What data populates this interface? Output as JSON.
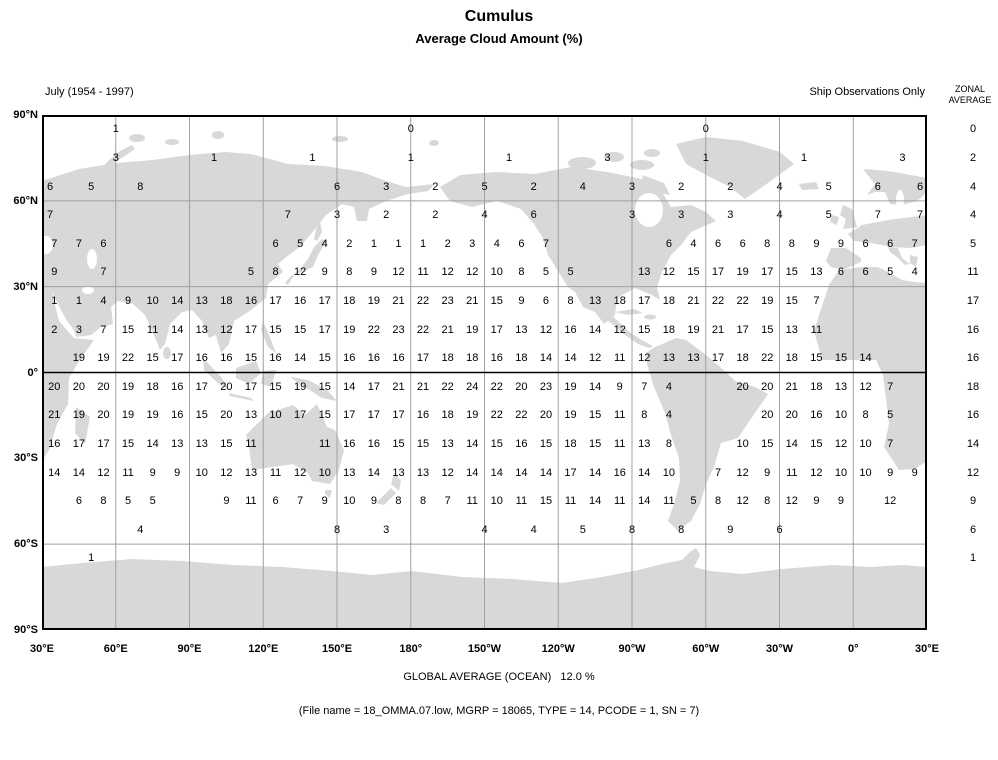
{
  "chart_data": {
    "type": "heatmap",
    "title": "Cumulus",
    "subtitle": "Average Cloud Amount (%)",
    "period": "July (1954 - 1997)",
    "annotation": "Ship Observations Only",
    "zonal_header_line1": "ZONAL",
    "zonal_header_line2": "AVERAGE",
    "global_average": "GLOBAL AVERAGE (OCEAN)   12.0 %",
    "file_info": "(File name = 18_OMMA.07.low, MGRP = 18065, TYPE = 14, PCODE = 1, SN = 7)",
    "x_tick_labels": [
      "30°E",
      "60°E",
      "90°E",
      "120°E",
      "150°E",
      "180°",
      "150°W",
      "120°W",
      "90°W",
      "60°W",
      "30°W",
      "0°",
      "30°E"
    ],
    "y_tick_labels": [
      "90°N",
      "60°N",
      "30°N",
      "0°",
      "30°S",
      "60°S",
      "90°S"
    ],
    "lon_origin_deg_east": 30,
    "lon_step_deg": 10,
    "rows": [
      {
        "band": "85N",
        "phase": "grid",
        "zonal": 0,
        "values": {
          "3": 1,
          "15": 0,
          "27": 0
        }
      },
      {
        "band": "75N",
        "phase": "grid",
        "zonal": 2,
        "values": {
          "3": 3,
          "7": 1,
          "11": 1,
          "15": 1,
          "19": 1,
          "23": 3,
          "27": 1,
          "31": 1,
          "35": 3
        }
      },
      {
        "band": "65N",
        "phase": "grid",
        "zonal": 4,
        "values": {
          "0": 6,
          "2": 5,
          "4": 8,
          "12": 6,
          "14": 3,
          "16": 2,
          "18": 5,
          "20": 2,
          "22": 4,
          "24": 3,
          "26": 2,
          "28": 2,
          "30": 4,
          "32": 5,
          "34": 6,
          "36": 6
        }
      },
      {
        "band": "55N",
        "phase": "grid",
        "zonal": 4,
        "values": {
          "0": 7,
          "10": 7,
          "12": 3,
          "14": 2,
          "16": 2,
          "18": 4,
          "20": 6,
          "24": 3,
          "26": 3,
          "28": 3,
          "30": 4,
          "32": 5,
          "34": 7,
          "36": 7
        }
      },
      {
        "band": "45N",
        "phase": "center",
        "zonal": 5,
        "values": {
          "0": 7,
          "1": 7,
          "2": 6,
          "9": 6,
          "10": 5,
          "11": 4,
          "12": 2,
          "13": 1,
          "14": 1,
          "15": 1,
          "16": 2,
          "17": 3,
          "18": 4,
          "19": 6,
          "20": 7,
          "25": 6,
          "26": 4,
          "27": 6,
          "28": 6,
          "29": 8,
          "30": 8,
          "31": 9,
          "32": 9,
          "33": 6,
          "34": 6,
          "35": 7
        }
      },
      {
        "band": "35N",
        "phase": "center",
        "zonal": 11,
        "values": {
          "0": 9,
          "2": 7,
          "8": 5,
          "9": 8,
          "10": 12,
          "11": 9,
          "12": 8,
          "13": 9,
          "14": 12,
          "15": 11,
          "16": 12,
          "17": 12,
          "18": 10,
          "19": 8,
          "20": 5,
          "21": 5,
          "24": 13,
          "25": 12,
          "26": 15,
          "27": 17,
          "28": 19,
          "29": 17,
          "30": 15,
          "31": 13,
          "32": 6,
          "33": 6,
          "34": 5,
          "35": 4
        }
      },
      {
        "band": "25N",
        "phase": "center",
        "zonal": 17,
        "values": {
          "0": 1,
          "1": 1,
          "2": 4,
          "3": 9,
          "4": 10,
          "5": 14,
          "6": 13,
          "7": 18,
          "8": 16,
          "9": 17,
          "10": 16,
          "11": 17,
          "12": 18,
          "13": 19,
          "14": 21,
          "15": 22,
          "16": 23,
          "17": 21,
          "18": 15,
          "19": 9,
          "20": 6,
          "21": 8,
          "22": 13,
          "23": 18,
          "24": 17,
          "25": 18,
          "26": 21,
          "27": 22,
          "28": 22,
          "29": 19,
          "30": 15,
          "31": 7
        }
      },
      {
        "band": "15N",
        "phase": "center",
        "zonal": 16,
        "values": {
          "0": 2,
          "1": 3,
          "2": 7,
          "3": 15,
          "4": 11,
          "5": 14,
          "6": 13,
          "7": 12,
          "8": 17,
          "9": 15,
          "10": 15,
          "11": 17,
          "12": 19,
          "13": 22,
          "14": 23,
          "15": 22,
          "16": 21,
          "17": 19,
          "18": 17,
          "19": 13,
          "20": 12,
          "21": 16,
          "22": 14,
          "23": 12,
          "24": 15,
          "25": 18,
          "26": 19,
          "27": 21,
          "28": 17,
          "29": 15,
          "30": 13,
          "31": 11
        }
      },
      {
        "band": "5N",
        "phase": "center",
        "zonal": 16,
        "values": {
          "1": 19,
          "2": 19,
          "3": 22,
          "4": 15,
          "5": 17,
          "6": 16,
          "7": 16,
          "8": 15,
          "9": 16,
          "10": 14,
          "11": 15,
          "12": 16,
          "13": 16,
          "14": 16,
          "15": 17,
          "16": 18,
          "17": 18,
          "18": 16,
          "19": 18,
          "20": 14,
          "21": 14,
          "22": 12,
          "23": 11,
          "24": 12,
          "25": 13,
          "26": 13,
          "27": 17,
          "28": 18,
          "29": 22,
          "30": 18,
          "31": 15,
          "32": 15,
          "33": 14
        }
      },
      {
        "band": "5S",
        "phase": "center",
        "zonal": 18,
        "values": {
          "0": 20,
          "1": 20,
          "2": 20,
          "3": 19,
          "4": 18,
          "5": 16,
          "6": 17,
          "7": 20,
          "8": 17,
          "9": 15,
          "10": 19,
          "11": 15,
          "12": 14,
          "13": 17,
          "14": 21,
          "15": 21,
          "16": 22,
          "17": 24,
          "18": 22,
          "19": 20,
          "20": 23,
          "21": 19,
          "22": 14,
          "23": 9,
          "24": 7,
          "25": 4,
          "28": 20,
          "29": 20,
          "30": 21,
          "31": 18,
          "32": 13,
          "33": 12,
          "34": 7
        }
      },
      {
        "band": "15S",
        "phase": "center",
        "zonal": 16,
        "values": {
          "0": 21,
          "1": 19,
          "2": 20,
          "3": 19,
          "4": 19,
          "5": 16,
          "6": 15,
          "7": 20,
          "8": 13,
          "9": 10,
          "10": 17,
          "11": 15,
          "12": 17,
          "13": 17,
          "14": 17,
          "15": 16,
          "16": 18,
          "17": 19,
          "18": 22,
          "19": 22,
          "20": 20,
          "21": 19,
          "22": 15,
          "23": 11,
          "24": 8,
          "25": 4,
          "29": 20,
          "30": 20,
          "31": 16,
          "32": 10,
          "33": 8,
          "34": 5
        }
      },
      {
        "band": "25S",
        "phase": "center",
        "zonal": 14,
        "values": {
          "0": 16,
          "1": 17,
          "2": 17,
          "3": 15,
          "4": 14,
          "5": 13,
          "6": 13,
          "7": 15,
          "8": 11,
          "11": 11,
          "12": 16,
          "13": 16,
          "14": 15,
          "15": 15,
          "16": 13,
          "17": 14,
          "18": 15,
          "19": 16,
          "20": 15,
          "21": 18,
          "22": 15,
          "23": 11,
          "24": 13,
          "25": 8,
          "28": 10,
          "29": 15,
          "30": 14,
          "31": 15,
          "32": 12,
          "33": 10,
          "34": 7
        }
      },
      {
        "band": "35S",
        "phase": "center",
        "zonal": 12,
        "values": {
          "0": 14,
          "1": 14,
          "2": 12,
          "3": 11,
          "4": 9,
          "5": 9,
          "6": 10,
          "7": 12,
          "8": 13,
          "9": 11,
          "10": 12,
          "11": 10,
          "12": 13,
          "13": 14,
          "14": 13,
          "15": 13,
          "16": 12,
          "17": 14,
          "18": 14,
          "19": 14,
          "20": 14,
          "21": 17,
          "22": 14,
          "23": 16,
          "24": 14,
          "25": 10,
          "27": 7,
          "28": 12,
          "29": 9,
          "30": 11,
          "31": 12,
          "32": 10,
          "33": 10,
          "34": 9,
          "35": 9
        }
      },
      {
        "band": "45S",
        "phase": "center",
        "zonal": 9,
        "values": {
          "1": 6,
          "2": 8,
          "3": 5,
          "4": 5,
          "7": 9,
          "8": 11,
          "9": 6,
          "10": 7,
          "11": 9,
          "12": 10,
          "13": 9,
          "14": 8,
          "15": 8,
          "16": 7,
          "17": 11,
          "18": 10,
          "19": 11,
          "20": 15,
          "21": 11,
          "22": 14,
          "23": 11,
          "24": 14,
          "25": 11,
          "26": 5,
          "27": 8,
          "28": 12,
          "29": 8,
          "30": 12,
          "31": 9,
          "32": 9,
          "34": 12
        }
      },
      {
        "band": "55S",
        "phase": "grid",
        "zonal": 6,
        "values": {
          "4": 4,
          "12": 8,
          "14": 3,
          "18": 4,
          "20": 4,
          "22": 5,
          "24": 8,
          "26": 8,
          "28": 9,
          "30": 6
        }
      },
      {
        "band": "65S",
        "phase": "grid",
        "zonal": 1,
        "values": {
          "2": 1
        }
      }
    ]
  }
}
